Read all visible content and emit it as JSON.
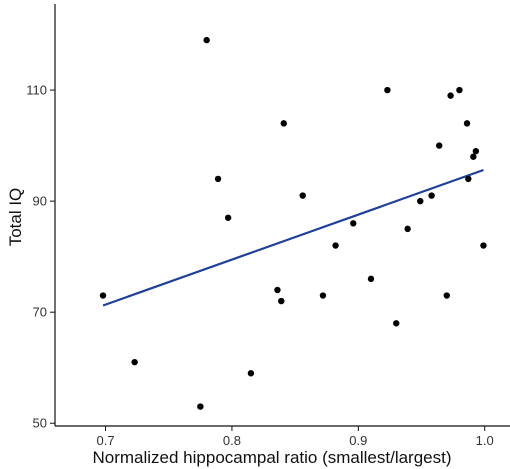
{
  "chart_data": {
    "type": "scatter",
    "title": "",
    "xlabel": "Normalized hippocampal ratio (smallest/largest)",
    "ylabel": "Total IQ",
    "xlim": [
      0.66,
      1.02
    ],
    "ylim": [
      49.5,
      125.5
    ],
    "x_ticks": [
      0.7,
      0.8,
      0.9,
      1.0
    ],
    "x_tick_labels": [
      "0.7",
      "0.8",
      "0.9",
      "1.0"
    ],
    "y_ticks": [
      50,
      70,
      90,
      110
    ],
    "y_tick_labels": [
      "50",
      "70",
      "90",
      "110"
    ],
    "grid": false,
    "colors": {
      "points": "#000000",
      "fit_line": "#1f3f99"
    },
    "points": [
      {
        "x": 0.698,
        "y": 73
      },
      {
        "x": 0.723,
        "y": 61
      },
      {
        "x": 0.775,
        "y": 53
      },
      {
        "x": 0.78,
        "y": 119
      },
      {
        "x": 0.789,
        "y": 94
      },
      {
        "x": 0.797,
        "y": 87
      },
      {
        "x": 0.815,
        "y": 59
      },
      {
        "x": 0.836,
        "y": 74
      },
      {
        "x": 0.839,
        "y": 72
      },
      {
        "x": 0.841,
        "y": 104
      },
      {
        "x": 0.856,
        "y": 91
      },
      {
        "x": 0.872,
        "y": 73
      },
      {
        "x": 0.882,
        "y": 82
      },
      {
        "x": 0.896,
        "y": 86
      },
      {
        "x": 0.91,
        "y": 76
      },
      {
        "x": 0.923,
        "y": 110
      },
      {
        "x": 0.93,
        "y": 68
      },
      {
        "x": 0.939,
        "y": 85
      },
      {
        "x": 0.949,
        "y": 90
      },
      {
        "x": 0.958,
        "y": 91
      },
      {
        "x": 0.964,
        "y": 100
      },
      {
        "x": 0.97,
        "y": 73
      },
      {
        "x": 0.973,
        "y": 109
      },
      {
        "x": 0.98,
        "y": 110
      },
      {
        "x": 0.986,
        "y": 104
      },
      {
        "x": 0.987,
        "y": 94
      },
      {
        "x": 0.991,
        "y": 98
      },
      {
        "x": 0.993,
        "y": 99
      },
      {
        "x": 0.999,
        "y": 82
      }
    ],
    "fit_line": {
      "x": [
        0.698,
        0.999
      ],
      "y": [
        71.2,
        95.6
      ]
    }
  }
}
